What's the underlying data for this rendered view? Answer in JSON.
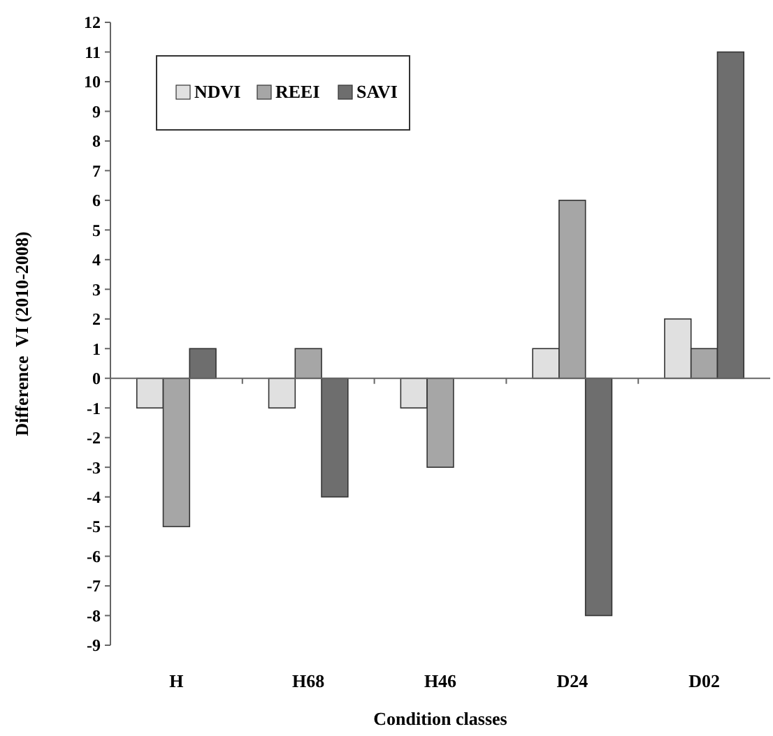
{
  "chart_data": {
    "type": "bar",
    "xlabel": "Condition classes",
    "ylabel": "Difference  VI (2010-2008)",
    "categories": [
      "H",
      "H68",
      "H46",
      "D24",
      "D02"
    ],
    "series": [
      {
        "name": "NDVI",
        "color": "#e0e0e0",
        "values": [
          -1,
          -1,
          -1,
          1,
          2
        ]
      },
      {
        "name": "REEI",
        "color": "#a6a6a6",
        "values": [
          -5,
          1,
          -3,
          6,
          1
        ]
      },
      {
        "name": "SAVI",
        "color": "#6e6e6e",
        "values": [
          1,
          -4,
          0,
          -8,
          11
        ]
      }
    ],
    "ylim": [
      -9,
      12
    ],
    "yticks": [
      -9,
      -8,
      -7,
      -6,
      -5,
      -4,
      -3,
      -2,
      -1,
      0,
      1,
      2,
      3,
      4,
      5,
      6,
      7,
      8,
      9,
      10,
      11,
      12
    ],
    "legend": "top left"
  }
}
